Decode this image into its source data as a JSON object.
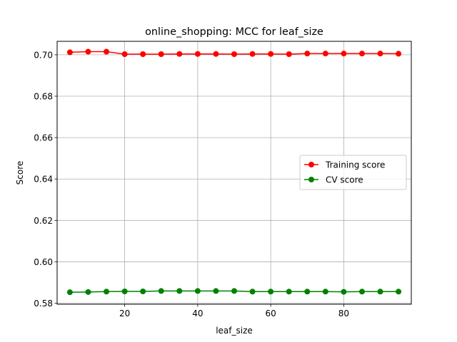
{
  "chart_data": {
    "type": "line",
    "title": "online_shopping: MCC for leaf_size",
    "xlabel": "leaf_size",
    "ylabel": "Score",
    "xlim": [
      1.5,
      98.5
    ],
    "ylim": [
      0.5795,
      0.7065
    ],
    "xticks": [
      20,
      40,
      60,
      80
    ],
    "yticks": [
      0.58,
      0.6,
      0.62,
      0.64,
      0.66,
      0.68,
      0.7
    ],
    "ytick_labels": [
      "0.58",
      "0.60",
      "0.62",
      "0.64",
      "0.66",
      "0.68",
      "0.70"
    ],
    "grid": true,
    "legend_position": "center-right",
    "x": [
      5,
      10,
      15,
      20,
      25,
      30,
      35,
      40,
      45,
      50,
      55,
      60,
      65,
      70,
      75,
      80,
      85,
      90,
      95
    ],
    "series": [
      {
        "name": "Training score",
        "color": "#ff0000",
        "values": [
          0.7012,
          0.7015,
          0.7015,
          0.7003,
          0.7003,
          0.7003,
          0.7004,
          0.7004,
          0.7004,
          0.7003,
          0.7004,
          0.7004,
          0.7003,
          0.7006,
          0.7006,
          0.7006,
          0.7006,
          0.7006,
          0.7005
        ]
      },
      {
        "name": "CV score",
        "color": "#008000",
        "values": [
          0.5853,
          0.5854,
          0.5856,
          0.5857,
          0.5857,
          0.5859,
          0.5859,
          0.5859,
          0.5859,
          0.5859,
          0.5856,
          0.5856,
          0.5856,
          0.5856,
          0.5856,
          0.5855,
          0.5856,
          0.5856,
          0.5856
        ]
      }
    ]
  }
}
